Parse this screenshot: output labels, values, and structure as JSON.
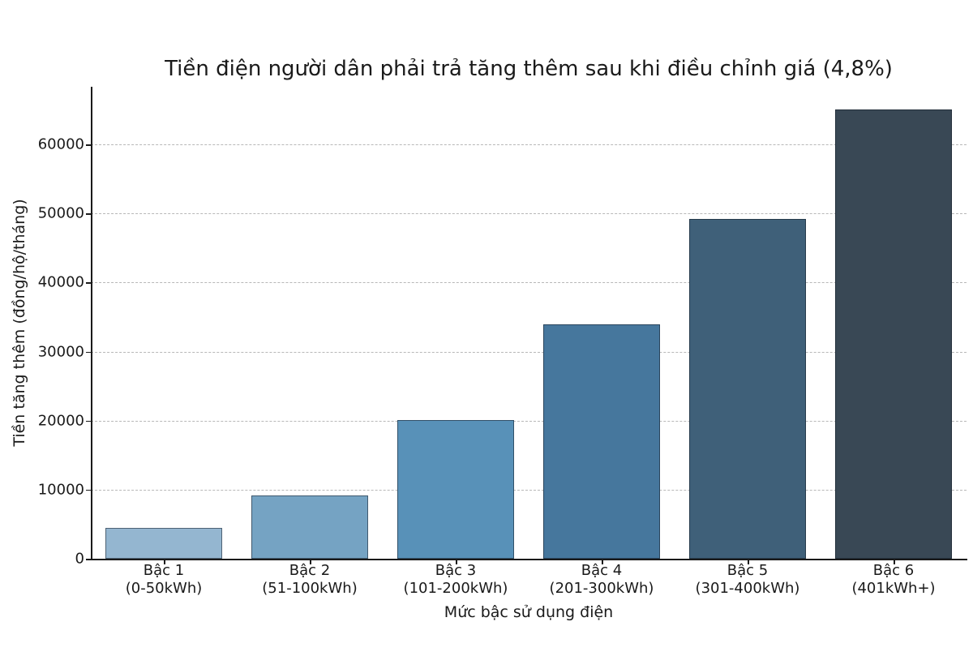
{
  "chart_data": {
    "type": "bar",
    "title": "Tiền điện người dân phải trả tăng thêm sau khi điều chỉnh giá (4,8%)",
    "xlabel": "Mức bậc sử dụng điện",
    "ylabel": "Tiền tăng thêm (đồng/hộ/tháng)",
    "categories": [
      "Bậc 1\n(0-50kWh)",
      "Bậc 2\n(51-100kWh)",
      "Bậc 3\n(101-200kWh)",
      "Bậc 4\n(201-300kWh)",
      "Bậc 5\n(301-400kWh)",
      "Bậc 6\n(401kWh+)"
    ],
    "values": [
      4500,
      9200,
      20100,
      33900,
      49200,
      65000
    ],
    "ylim": [
      0,
      68300
    ],
    "yticks": [
      0,
      10000,
      20000,
      30000,
      40000,
      50000,
      60000
    ],
    "grid": "y, dashed",
    "legend": null,
    "bar_colors": [
      "#94b6d0",
      "#75a3c3",
      "#5891b8",
      "#46779d",
      "#3f6079",
      "#394855"
    ]
  },
  "labels": {
    "title": "Tiền điện người dân phải trả tăng thêm sau khi điều chỉnh giá (4,8%)",
    "xaxis": "Mức bậc sử dụng điện",
    "yaxis": "Tiền tăng thêm (đồng/hộ/tháng)",
    "yticks": [
      "0",
      "10000",
      "20000",
      "30000",
      "40000",
      "50000",
      "60000"
    ],
    "bars": [
      {
        "line1": "Bậc 1",
        "line2": "(0-50kWh)"
      },
      {
        "line1": "Bậc 2",
        "line2": "(51-100kWh)"
      },
      {
        "line1": "Bậc 3",
        "line2": "(101-200kWh)"
      },
      {
        "line1": "Bậc 4",
        "line2": "(201-300kWh)"
      },
      {
        "line1": "Bậc 5",
        "line2": "(301-400kWh)"
      },
      {
        "line1": "Bậc 6",
        "line2": "(401kWh+)"
      }
    ]
  }
}
